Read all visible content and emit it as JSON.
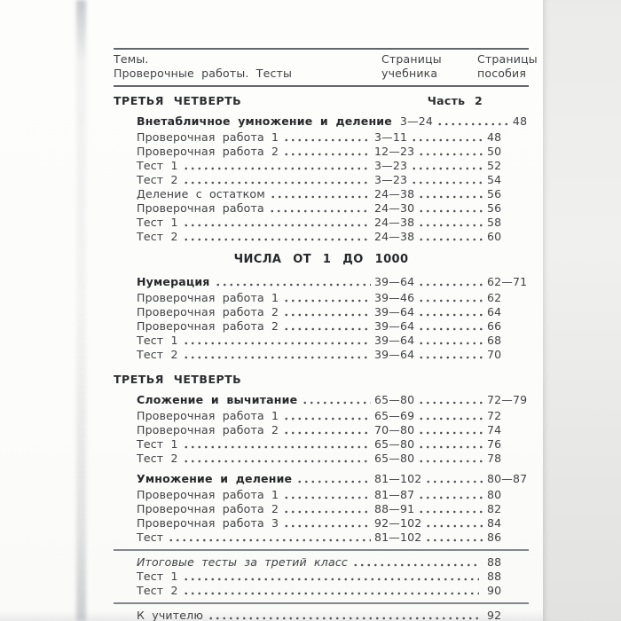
{
  "colors": {
    "page": "#fcfcfb",
    "backdrop": "#e9e9e7",
    "text": "#3f4144",
    "rule": "#63676c"
  },
  "header": {
    "topics_line1": "Темы.",
    "topics_line2": "Проверочные работы. Тесты",
    "textbook_line1": "Страницы",
    "textbook_line2": "учебника",
    "manual_line1": "Страницы",
    "manual_line2": "пособия"
  },
  "toc": {
    "rows": [
      {
        "type": "quarter",
        "label": "ТРЕТЬЯ ЧЕТВЕРТЬ",
        "right": "Часть 2"
      },
      {
        "type": "entry",
        "style": "bold",
        "label": "Внетабличное умножение и деление",
        "ucheb": "3—24",
        "posob": "48"
      },
      {
        "type": "entry",
        "style": "normal",
        "label": "Проверочная работа 1",
        "ucheb": "3—11",
        "posob": "48"
      },
      {
        "type": "entry",
        "style": "normal",
        "label": "Проверочная работа 2",
        "ucheb": "12—23",
        "posob": "50"
      },
      {
        "type": "entry",
        "style": "normal",
        "label": "Тест 1",
        "ucheb": "3—23",
        "posob": "52"
      },
      {
        "type": "entry",
        "style": "normal",
        "label": "Тест 2",
        "ucheb": "3—23",
        "posob": "54"
      },
      {
        "type": "entry",
        "style": "normal",
        "label": "Деление с остатком",
        "ucheb": "24—38",
        "posob": "56"
      },
      {
        "type": "entry",
        "style": "normal",
        "label": "Проверочная работа",
        "ucheb": "24—30",
        "posob": "56"
      },
      {
        "type": "entry",
        "style": "normal",
        "label": "Тест 1",
        "ucheb": "24—38",
        "posob": "58"
      },
      {
        "type": "entry",
        "style": "normal",
        "label": "Тест 2",
        "ucheb": "24—38",
        "posob": "60"
      },
      {
        "type": "center",
        "label": "ЧИСЛА ОТ 1 ДО 1000"
      },
      {
        "type": "entry",
        "style": "bold",
        "label": "Нумерация",
        "ucheb": "39—64",
        "posob": "62—71"
      },
      {
        "type": "entry",
        "style": "normal",
        "label": "Проверочная работа 1",
        "ucheb": "39—46",
        "posob": "62"
      },
      {
        "type": "entry",
        "style": "normal",
        "label": "Проверочная работа 2",
        "ucheb": "39—64",
        "posob": "64"
      },
      {
        "type": "entry",
        "style": "normal",
        "label": "Проверочная работа 2",
        "ucheb": "39—64",
        "posob": "66"
      },
      {
        "type": "entry",
        "style": "normal",
        "label": "Тест 1",
        "ucheb": "39—64",
        "posob": "68"
      },
      {
        "type": "entry",
        "style": "normal",
        "label": "Тест 2",
        "ucheb": "39—64",
        "posob": "70"
      },
      {
        "type": "quarter",
        "label": "ТРЕТЬЯ ЧЕТВЕРТЬ",
        "right": ""
      },
      {
        "type": "entry",
        "style": "bold",
        "label": "Сложение и вычитание",
        "ucheb": "65—80",
        "posob": "72—79"
      },
      {
        "type": "entry",
        "style": "normal",
        "label": "Проверочная работа 1",
        "ucheb": "65—69",
        "posob": "72"
      },
      {
        "type": "entry",
        "style": "normal",
        "label": "Проверочная работа 2",
        "ucheb": "70—80",
        "posob": "74"
      },
      {
        "type": "entry",
        "style": "normal",
        "label": "Тест 1",
        "ucheb": "65—80",
        "posob": "76"
      },
      {
        "type": "entry",
        "style": "normal",
        "label": "Тест 2",
        "ucheb": "65—80",
        "posob": "78"
      },
      {
        "type": "entry",
        "style": "bold",
        "label": "Умножение и деление",
        "ucheb": "81—102",
        "posob": "80—87"
      },
      {
        "type": "entry",
        "style": "normal",
        "label": "Проверочная работа 1",
        "ucheb": "81—87",
        "posob": "80"
      },
      {
        "type": "entry",
        "style": "normal",
        "label": "Проверочная работа 2",
        "ucheb": "88—91",
        "posob": "82"
      },
      {
        "type": "entry",
        "style": "normal",
        "label": "Проверочная работа 3",
        "ucheb": "92—102",
        "posob": "84"
      },
      {
        "type": "entry",
        "style": "normal",
        "label": "Тест",
        "ucheb": "81—102",
        "posob": "86"
      },
      {
        "type": "rule"
      },
      {
        "type": "entry",
        "style": "italic",
        "label": "Итоговые тесты за третий класс",
        "ucheb": "",
        "posob": "88"
      },
      {
        "type": "entry",
        "style": "normal",
        "label": "Тест 1",
        "ucheb": "",
        "posob": "88"
      },
      {
        "type": "entry",
        "style": "normal",
        "label": "Тест 2",
        "ucheb": "",
        "posob": "90"
      },
      {
        "type": "rule"
      },
      {
        "type": "entry",
        "style": "normal",
        "label": "К учителю",
        "ucheb": "",
        "posob": "92"
      }
    ]
  }
}
